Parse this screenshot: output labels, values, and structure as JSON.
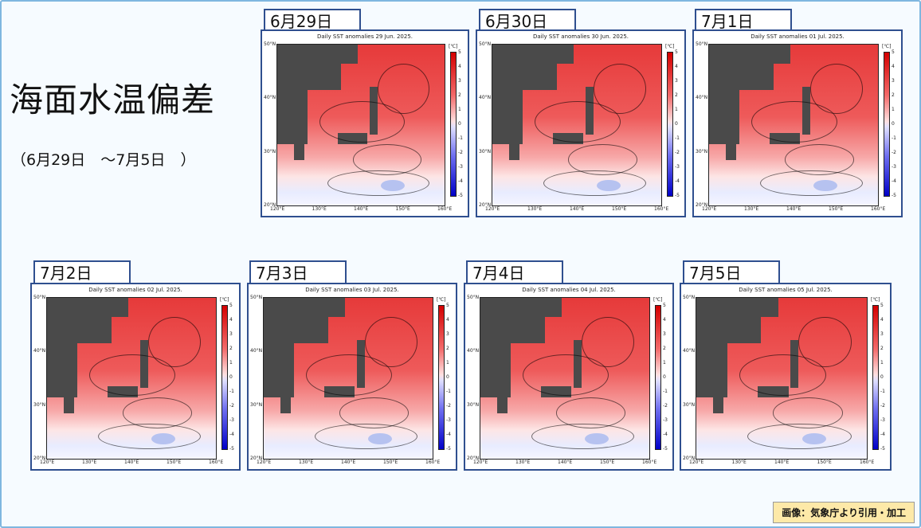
{
  "title": "海面水温偏差",
  "date_range": "（6月29日　～7月5日　）",
  "credit": "画像：気象庁より引用・加工",
  "colorbar": {
    "unit": "[℃]",
    "ticks": [
      "5",
      "4",
      "3",
      "2",
      "1",
      "0",
      "-1",
      "-2",
      "-3",
      "-4",
      "-5"
    ]
  },
  "axes": {
    "lat_labels": [
      "50°N",
      "40°N",
      "30°N",
      "20°N"
    ],
    "lon_labels": [
      "120°E",
      "130°E",
      "140°E",
      "150°E",
      "160°E"
    ]
  },
  "panels": [
    {
      "date": "6月29日",
      "map_title": "Daily SST anomalies 29 Jun. 2025."
    },
    {
      "date": "6月30日",
      "map_title": "Daily SST anomalies 30 Jun. 2025."
    },
    {
      "date": "7月1日",
      "map_title": "Daily SST anomalies 01 Jul. 2025."
    },
    {
      "date": "7月2日",
      "map_title": "Daily SST anomalies 02 Jul. 2025."
    },
    {
      "date": "7月3日",
      "map_title": "Daily SST anomalies 03 Jul. 2025."
    },
    {
      "date": "7月4日",
      "map_title": "Daily SST anomalies 04 Jul. 2025."
    },
    {
      "date": "7月5日",
      "map_title": "Daily SST anomalies 05 Jul. 2025."
    }
  ]
}
